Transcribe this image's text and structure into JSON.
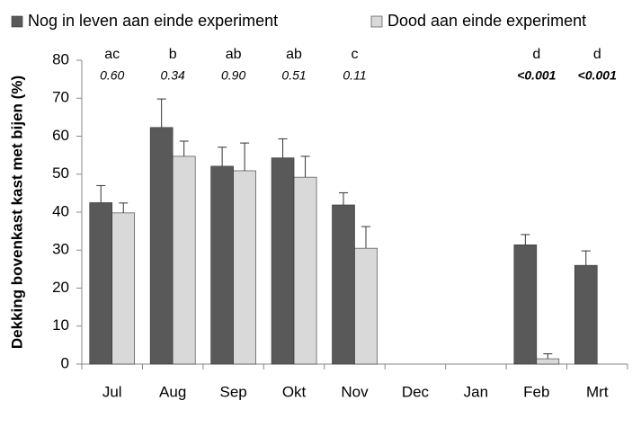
{
  "chart_data": {
    "type": "bar",
    "y_label": "Dekking bovenkast kast met bijen (%)",
    "categories": [
      "Jul",
      "Aug",
      "Sep",
      "Okt",
      "Nov",
      "Dec",
      "Jan",
      "Feb",
      "Mrt"
    ],
    "series": [
      {
        "name": "Nog in leven aan einde experiment",
        "color": "#595959",
        "values": [
          42.5,
          62.3,
          52.1,
          54.3,
          41.9,
          null,
          null,
          31.4,
          26.0
        ],
        "errors": [
          4.5,
          7.5,
          5.0,
          5.0,
          3.2,
          null,
          null,
          2.7,
          3.8
        ]
      },
      {
        "name": "Dood aan einde experiment",
        "color": "#d9d9d9",
        "values": [
          39.8,
          54.7,
          50.9,
          49.2,
          30.5,
          null,
          null,
          1.4,
          null
        ],
        "errors": [
          2.6,
          4.0,
          7.3,
          5.5,
          5.7,
          null,
          null,
          1.3,
          null
        ]
      }
    ],
    "letters": [
      "ac",
      "b",
      "ab",
      "ab",
      "c",
      null,
      null,
      "d",
      "d"
    ],
    "p_values": [
      "0.60",
      "0.34",
      "0.90",
      "0.51",
      "0.11",
      null,
      null,
      "<0.001",
      "<0.001"
    ],
    "ylim": [
      0,
      80
    ],
    "yticks": [
      0,
      10,
      20,
      30,
      40,
      50,
      60,
      70,
      80
    ],
    "grid": false
  }
}
